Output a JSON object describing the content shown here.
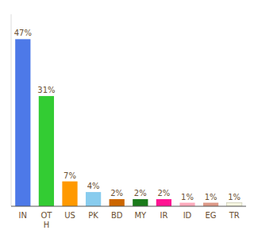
{
  "chart_data": {
    "type": "bar",
    "categories": [
      "IN",
      "OT\nH",
      "US",
      "PK",
      "BD",
      "MY",
      "IR",
      "ID",
      "EG",
      "TR"
    ],
    "values": [
      47,
      31,
      7,
      4,
      2,
      2,
      2,
      1,
      1,
      1
    ],
    "value_labels": [
      "47%",
      "31%",
      "7%",
      "4%",
      "2%",
      "2%",
      "2%",
      "1%",
      "1%",
      "1%"
    ],
    "colors": [
      "#4d79e8",
      "#33cc33",
      "#ff9900",
      "#88ccee",
      "#cc6600",
      "#1a7a1a",
      "#ff1493",
      "#ffaabc",
      "#dd9988",
      "#f5f5e0"
    ],
    "ylim": [
      0,
      54
    ],
    "data_labels": true,
    "tick_labels": "x",
    "grid": false
  }
}
